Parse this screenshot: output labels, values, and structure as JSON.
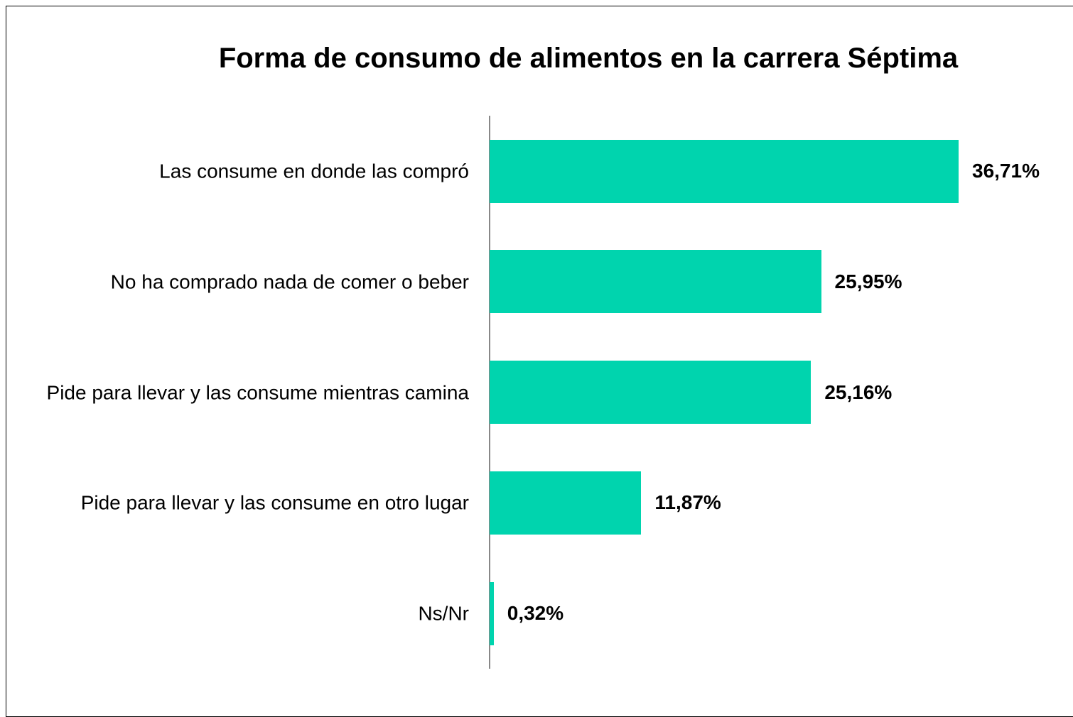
{
  "chart_data": {
    "type": "bar",
    "orientation": "horizontal",
    "title": "Forma de consumo de alimentos en la carrera Séptima",
    "categories": [
      "Las consume en donde las compró",
      "No ha comprado nada de comer o beber",
      "Pide para llevar y las consume mientras camina",
      "Pide para llevar y las consume en otro lugar",
      "Ns/Nr"
    ],
    "values": [
      36.71,
      25.95,
      25.16,
      11.87,
      0.32
    ],
    "value_labels": [
      "36,71%",
      "25,95%",
      "25,16%",
      "11,87%",
      "0,32%"
    ],
    "color": "#00d4ae"
  }
}
